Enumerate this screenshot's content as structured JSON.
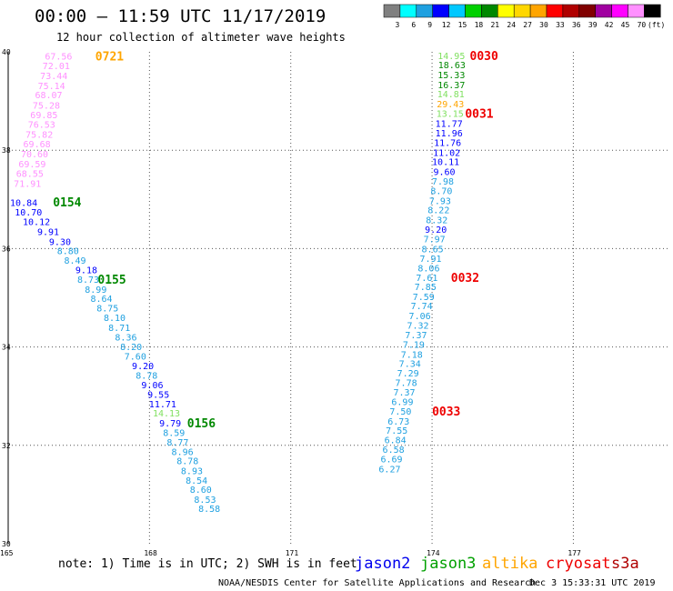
{
  "header": {
    "title": "00:00 – 11:59 UTC 11/17/2019",
    "subtitle": "12 hour collection of altimeter wave heights"
  },
  "colorbar": {
    "labels": [
      "3",
      "6",
      "9",
      "12",
      "15",
      "18",
      "21",
      "24",
      "27",
      "30",
      "33",
      "36",
      "39",
      "42",
      "45",
      "70"
    ],
    "unit": "(ft)",
    "colors": [
      "#808080",
      "#00ffff",
      "#1fa0e0",
      "#0000ff",
      "#00c8ff",
      "#00d000",
      "#008800",
      "#ffff00",
      "#ffd700",
      "#ffa500",
      "#ff0000",
      "#b00000",
      "#800000",
      "#a000a0",
      "#ff00ff",
      "#ff90ff",
      "#000000"
    ]
  },
  "note": "note:  1) Time is in UTC;  2) SWH is in feet",
  "legend": [
    {
      "name": "jason2",
      "color": "#0000ee"
    },
    {
      "name": "jason3",
      "color": "#00a000"
    },
    {
      "name": "altika",
      "color": "#ffa500"
    },
    {
      "name": "cryosat",
      "color": "#ee0000"
    },
    {
      "name": "s3a",
      "color": "#b00000"
    }
  ],
  "footer": {
    "credit": "NOAA/NESDIS Center for Satellite Applications and Research",
    "timestamp": "Dec  3 15:33:31 UTC 2019"
  },
  "chart_data": {
    "type": "scatter",
    "xlim": [
      165,
      179
    ],
    "ylim": [
      30,
      40
    ],
    "x_ticks": [
      "165",
      "168",
      "171",
      "174",
      "177"
    ],
    "y_ticks": [
      "40",
      "38",
      "36",
      "34",
      "32",
      "30"
    ],
    "grid": true,
    "tracks": [
      {
        "points": [
          {
            "x": 166.07,
            "y": 39.9,
            "v": "67.56",
            "c": "#ff90ff"
          },
          {
            "x": 166.02,
            "y": 39.7,
            "v": "72.01",
            "c": "#ff90ff"
          },
          {
            "x": 165.97,
            "y": 39.5,
            "v": "73.44",
            "c": "#ff90ff"
          },
          {
            "x": 165.92,
            "y": 39.3,
            "v": "75.14",
            "c": "#ff90ff"
          },
          {
            "x": 165.86,
            "y": 39.11,
            "v": "68.07",
            "c": "#ff90ff"
          },
          {
            "x": 165.81,
            "y": 38.9,
            "v": "75.28",
            "c": "#ff90ff"
          },
          {
            "x": 165.76,
            "y": 38.71,
            "v": "69.85",
            "c": "#ff90ff"
          },
          {
            "x": 165.71,
            "y": 38.51,
            "v": "76.53",
            "c": "#ff90ff"
          },
          {
            "x": 165.66,
            "y": 38.31,
            "v": "75.82",
            "c": "#ff90ff"
          },
          {
            "x": 165.61,
            "y": 38.11,
            "v": "69.68",
            "c": "#ff90ff"
          },
          {
            "x": 165.56,
            "y": 37.91,
            "v": "70.60",
            "c": "#ff90ff"
          },
          {
            "x": 165.51,
            "y": 37.71,
            "v": "69.59",
            "c": "#ff90ff"
          },
          {
            "x": 165.46,
            "y": 37.51,
            "v": "68.55",
            "c": "#ff90ff"
          },
          {
            "x": 165.41,
            "y": 37.31,
            "v": "71.91",
            "c": "#ff90ff"
          }
        ],
        "time_label": {
          "text": "0721",
          "x": 166.85,
          "y": 39.9,
          "c": "#ffa500"
        }
      },
      {
        "points": [
          {
            "x": 165.33,
            "y": 36.92,
            "v": "10.84",
            "c": "#0000ff"
          },
          {
            "x": 165.43,
            "y": 36.73,
            "v": "10.70",
            "c": "#0000ff"
          },
          {
            "x": 165.6,
            "y": 36.53,
            "v": "10.12",
            "c": "#0000ff"
          },
          {
            "x": 165.85,
            "y": 36.33,
            "v": "9.91",
            "c": "#0000ff"
          },
          {
            "x": 166.1,
            "y": 36.13,
            "v": "9.30",
            "c": "#0000ff"
          },
          {
            "x": 166.27,
            "y": 35.94,
            "v": "8.80",
            "c": "#1fa0e0"
          },
          {
            "x": 166.42,
            "y": 35.75,
            "v": "8.49",
            "c": "#1fa0e0"
          },
          {
            "x": 166.66,
            "y": 35.55,
            "v": "9.18",
            "c": "#0000ff"
          },
          {
            "x": 166.7,
            "y": 35.36,
            "v": "8.73",
            "c": "#1fa0e0"
          },
          {
            "x": 166.86,
            "y": 35.16,
            "v": "8.99",
            "c": "#1fa0e0"
          },
          {
            "x": 166.98,
            "y": 34.97,
            "v": "8.64",
            "c": "#1fa0e0"
          },
          {
            "x": 167.11,
            "y": 34.78,
            "v": "8.75",
            "c": "#1fa0e0"
          },
          {
            "x": 167.26,
            "y": 34.58,
            "v": "8.10",
            "c": "#1fa0e0"
          },
          {
            "x": 167.36,
            "y": 34.38,
            "v": "8.71",
            "c": "#1fa0e0"
          },
          {
            "x": 167.5,
            "y": 34.19,
            "v": "8.36",
            "c": "#1fa0e0"
          },
          {
            "x": 167.61,
            "y": 33.99,
            "v": "8.20",
            "c": "#1fa0e0"
          },
          {
            "x": 167.7,
            "y": 33.8,
            "v": "7.60",
            "c": "#1fa0e0"
          },
          {
            "x": 167.86,
            "y": 33.6,
            "v": "9.20",
            "c": "#0000ff"
          },
          {
            "x": 167.94,
            "y": 33.41,
            "v": "8.78",
            "c": "#1fa0e0"
          },
          {
            "x": 168.06,
            "y": 33.22,
            "v": "9.06",
            "c": "#0000ff"
          },
          {
            "x": 168.19,
            "y": 33.02,
            "v": "9.55",
            "c": "#0000ff"
          },
          {
            "x": 168.28,
            "y": 32.83,
            "v": "11.71",
            "c": "#0000ff"
          },
          {
            "x": 168.36,
            "y": 32.64,
            "v": "14.13",
            "c": "#80e060"
          },
          {
            "x": 168.44,
            "y": 32.44,
            "v": "9.79",
            "c": "#0000ff"
          },
          {
            "x": 168.52,
            "y": 32.25,
            "v": "8.59",
            "c": "#1fa0e0"
          },
          {
            "x": 168.6,
            "y": 32.05,
            "v": "8.77",
            "c": "#1fa0e0"
          },
          {
            "x": 168.7,
            "y": 31.86,
            "v": "8.96",
            "c": "#1fa0e0"
          },
          {
            "x": 168.81,
            "y": 31.67,
            "v": "8.78",
            "c": "#1fa0e0"
          },
          {
            "x": 168.9,
            "y": 31.47,
            "v": "8.93",
            "c": "#1fa0e0"
          },
          {
            "x": 169.0,
            "y": 31.28,
            "v": "8.54",
            "c": "#1fa0e0"
          },
          {
            "x": 169.09,
            "y": 31.09,
            "v": "8.60",
            "c": "#1fa0e0"
          },
          {
            "x": 169.18,
            "y": 30.89,
            "v": "8.53",
            "c": "#1fa0e0"
          },
          {
            "x": 169.27,
            "y": 30.7,
            "v": "8.58",
            "c": "#1fa0e0"
          }
        ],
        "time_labels": [
          {
            "text": "0154",
            "x": 165.95,
            "y": 36.93,
            "c": "#008800"
          },
          {
            "text": "0155",
            "x": 166.9,
            "y": 35.36,
            "c": "#008800"
          },
          {
            "text": "0156",
            "x": 168.8,
            "y": 32.44,
            "c": "#008800"
          }
        ]
      },
      {
        "points": [
          {
            "x": 174.41,
            "y": 39.91,
            "v": "14.95",
            "c": "#80e060"
          },
          {
            "x": 174.42,
            "y": 39.72,
            "v": "18.63",
            "c": "#008800"
          },
          {
            "x": 174.41,
            "y": 39.52,
            "v": "15.33",
            "c": "#008800"
          },
          {
            "x": 174.41,
            "y": 39.32,
            "v": "16.37",
            "c": "#008800"
          },
          {
            "x": 174.4,
            "y": 39.13,
            "v": "14.81",
            "c": "#80e060"
          },
          {
            "x": 174.39,
            "y": 38.93,
            "v": "29.43",
            "c": "#ffa500"
          },
          {
            "x": 174.38,
            "y": 38.73,
            "v": "13.15",
            "c": "#80e060"
          },
          {
            "x": 174.36,
            "y": 38.53,
            "v": "11.77",
            "c": "#0000ff"
          },
          {
            "x": 174.36,
            "y": 38.34,
            "v": "11.96",
            "c": "#0000ff"
          },
          {
            "x": 174.33,
            "y": 38.14,
            "v": "11.76",
            "c": "#0000ff"
          },
          {
            "x": 174.31,
            "y": 37.94,
            "v": "11.02",
            "c": "#0000ff"
          },
          {
            "x": 174.29,
            "y": 37.75,
            "v": "10.11",
            "c": "#0000ff"
          },
          {
            "x": 174.26,
            "y": 37.55,
            "v": "9.60",
            "c": "#0000ff"
          },
          {
            "x": 174.23,
            "y": 37.36,
            "v": "7.98",
            "c": "#1fa0e0"
          },
          {
            "x": 174.2,
            "y": 37.16,
            "v": "8.70",
            "c": "#1fa0e0"
          },
          {
            "x": 174.17,
            "y": 36.96,
            "v": "7.93",
            "c": "#1fa0e0"
          },
          {
            "x": 174.14,
            "y": 36.77,
            "v": "8.22",
            "c": "#1fa0e0"
          },
          {
            "x": 174.1,
            "y": 36.57,
            "v": "8.32",
            "c": "#1fa0e0"
          },
          {
            "x": 174.08,
            "y": 36.38,
            "v": "9.20",
            "c": "#0000ff"
          },
          {
            "x": 174.05,
            "y": 36.18,
            "v": "7.97",
            "c": "#1fa0e0"
          },
          {
            "x": 174.01,
            "y": 35.98,
            "v": "8.65",
            "c": "#1fa0e0"
          },
          {
            "x": 173.97,
            "y": 35.79,
            "v": "7.91",
            "c": "#1fa0e0"
          },
          {
            "x": 173.93,
            "y": 35.59,
            "v": "8.06",
            "c": "#1fa0e0"
          },
          {
            "x": 173.89,
            "y": 35.4,
            "v": "7.61",
            "c": "#1fa0e0"
          },
          {
            "x": 173.86,
            "y": 35.21,
            "v": "7.85",
            "c": "#1fa0e0"
          },
          {
            "x": 173.82,
            "y": 35.01,
            "v": "7.59",
            "c": "#1fa0e0"
          },
          {
            "x": 173.78,
            "y": 34.82,
            "v": "7.74",
            "c": "#1fa0e0"
          },
          {
            "x": 173.74,
            "y": 34.62,
            "v": "7.06",
            "c": "#1fa0e0"
          },
          {
            "x": 173.7,
            "y": 34.43,
            "v": "7.32",
            "c": "#1fa0e0"
          },
          {
            "x": 173.66,
            "y": 34.23,
            "v": "7.37",
            "c": "#1fa0e0"
          },
          {
            "x": 173.61,
            "y": 34.04,
            "v": "7.19",
            "c": "#1fa0e0"
          },
          {
            "x": 173.57,
            "y": 33.84,
            "v": "7.18",
            "c": "#1fa0e0"
          },
          {
            "x": 173.53,
            "y": 33.65,
            "v": "7.34",
            "c": "#1fa0e0"
          },
          {
            "x": 173.49,
            "y": 33.46,
            "v": "7.29",
            "c": "#1fa0e0"
          },
          {
            "x": 173.45,
            "y": 33.26,
            "v": "7.78",
            "c": "#1fa0e0"
          },
          {
            "x": 173.41,
            "y": 33.07,
            "v": "7.37",
            "c": "#1fa0e0"
          },
          {
            "x": 173.37,
            "y": 32.87,
            "v": "6.99",
            "c": "#1fa0e0"
          },
          {
            "x": 173.33,
            "y": 32.68,
            "v": "7.50",
            "c": "#1fa0e0"
          },
          {
            "x": 173.29,
            "y": 32.48,
            "v": "6.73",
            "c": "#1fa0e0"
          },
          {
            "x": 173.25,
            "y": 32.29,
            "v": "7.55",
            "c": "#1fa0e0"
          },
          {
            "x": 173.22,
            "y": 32.1,
            "v": "6.84",
            "c": "#1fa0e0"
          },
          {
            "x": 173.18,
            "y": 31.9,
            "v": "6.58",
            "c": "#1fa0e0"
          },
          {
            "x": 173.14,
            "y": 31.71,
            "v": "6.69",
            "c": "#1fa0e0"
          },
          {
            "x": 173.1,
            "y": 31.51,
            "v": "6.27",
            "c": "#1fa0e0"
          }
        ],
        "time_labels": [
          {
            "text": "0030",
            "x": 174.8,
            "y": 39.91,
            "c": "#ee0000"
          },
          {
            "text": "0031",
            "x": 174.7,
            "y": 38.73,
            "c": "#ee0000"
          },
          {
            "text": "0032",
            "x": 174.4,
            "y": 35.4,
            "c": "#ee0000"
          },
          {
            "text": "0033",
            "x": 174.0,
            "y": 32.68,
            "c": "#ee0000"
          }
        ]
      }
    ]
  }
}
